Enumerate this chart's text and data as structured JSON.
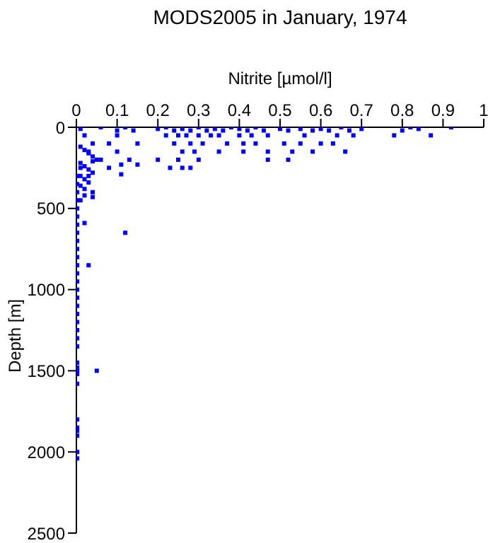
{
  "chart_data": {
    "type": "scatter",
    "title": "MODS2005 in January, 1974",
    "xlabel": "Nitrite [µmol/l]",
    "ylabel": "Depth [m]",
    "xlim": [
      0,
      1
    ],
    "xticks": [
      0,
      0.1,
      0.2,
      0.3,
      0.4,
      0.5,
      0.6,
      0.7,
      0.8,
      0.9,
      1
    ],
    "ylim": [
      2500,
      0
    ],
    "yticks": [
      0,
      500,
      1000,
      1500,
      2000,
      2500
    ],
    "grid": false,
    "marker": "square",
    "series": [
      {
        "color": "#0000ff",
        "x": [
          0.01,
          0.06,
          0.1,
          0.12,
          0.14,
          0.2,
          0.22,
          0.24,
          0.26,
          0.28,
          0.3,
          0.32,
          0.34,
          0.36,
          0.38,
          0.4,
          0.42,
          0.44,
          0.46,
          0.5,
          0.52,
          0.55,
          0.58,
          0.6,
          0.62,
          0.65,
          0.67,
          0.7,
          0.8,
          0.82,
          0.84,
          0.92,
          0.02,
          0.1,
          0.22,
          0.25,
          0.27,
          0.3,
          0.33,
          0.35,
          0.4,
          0.43,
          0.47,
          0.56,
          0.64,
          0.68,
          0.78,
          0.87,
          0.04,
          0.08,
          0.15,
          0.24,
          0.28,
          0.31,
          0.37,
          0.41,
          0.44,
          0.51,
          0.55,
          0.6,
          0.63,
          0.03,
          0.1,
          0.26,
          0.29,
          0.35,
          0.41,
          0.47,
          0.53,
          0.58,
          0.66,
          0.06,
          0.13,
          0.2,
          0.25,
          0.3,
          0.47,
          0.52,
          0.08,
          0.23,
          0.26,
          0.28,
          0.11,
          0.15,
          0.11,
          0.01,
          0.02,
          0.03,
          0.04,
          0.05,
          0.01,
          0.02,
          0.03,
          0.04,
          0.01,
          0.02,
          0.03,
          0.01,
          0.02,
          0.04,
          0.01,
          0.03,
          0.04,
          0.02,
          0.01,
          0.12,
          0.05,
          0.04,
          0.02,
          0.03,
          0.002,
          0.002,
          0.002,
          0.002,
          0.002,
          0.002,
          0.002,
          0.002,
          0.002,
          0.002,
          0.002,
          0.002,
          0.002,
          0.002,
          0.002,
          0.002,
          0.002,
          0.002,
          0.002,
          0.002,
          0.002,
          0.002,
          0.002,
          0.002,
          0.002,
          0.002,
          0.002,
          0.002,
          0.002,
          0.002,
          0.002,
          0.002,
          0.002
        ],
        "values": [
          10,
          0,
          20,
          0,
          20,
          10,
          0,
          20,
          10,
          20,
          0,
          20,
          10,
          20,
          0,
          10,
          20,
          0,
          20,
          10,
          20,
          10,
          20,
          10,
          20,
          0,
          20,
          10,
          20,
          0,
          10,
          0,
          50,
          50,
          50,
          50,
          50,
          50,
          50,
          50,
          50,
          50,
          50,
          50,
          50,
          50,
          50,
          50,
          100,
          100,
          100,
          100,
          100,
          100,
          100,
          100,
          100,
          100,
          100,
          100,
          100,
          150,
          150,
          150,
          150,
          150,
          150,
          150,
          150,
          150,
          150,
          200,
          200,
          200,
          200,
          200,
          200,
          200,
          250,
          250,
          250,
          250,
          230,
          230,
          290,
          120,
          140,
          160,
          180,
          200,
          220,
          240,
          260,
          280,
          300,
          320,
          340,
          360,
          380,
          400,
          250,
          300,
          210,
          420,
          450,
          650,
          1500,
          430,
          590,
          850,
          300,
          350,
          400,
          450,
          500,
          550,
          600,
          650,
          700,
          750,
          800,
          850,
          900,
          950,
          1000,
          1050,
          1100,
          1150,
          1200,
          1250,
          1300,
          1350,
          1450,
          1480,
          1500,
          1520,
          1580,
          1800,
          1850,
          1870,
          1900,
          2000,
          2040
        ]
      }
    ]
  }
}
